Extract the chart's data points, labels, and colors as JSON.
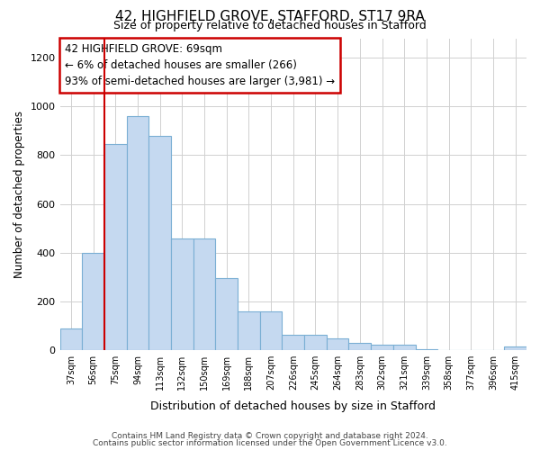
{
  "title1": "42, HIGHFIELD GROVE, STAFFORD, ST17 9RA",
  "title2": "Size of property relative to detached houses in Stafford",
  "xlabel": "Distribution of detached houses by size in Stafford",
  "ylabel": "Number of detached properties",
  "categories": [
    "37sqm",
    "56sqm",
    "75sqm",
    "94sqm",
    "113sqm",
    "132sqm",
    "150sqm",
    "169sqm",
    "188sqm",
    "207sqm",
    "226sqm",
    "245sqm",
    "264sqm",
    "283sqm",
    "302sqm",
    "321sqm",
    "339sqm",
    "358sqm",
    "377sqm",
    "396sqm",
    "415sqm"
  ],
  "values": [
    90,
    400,
    845,
    960,
    880,
    460,
    460,
    295,
    160,
    160,
    65,
    65,
    47,
    30,
    22,
    22,
    5,
    0,
    0,
    0,
    15
  ],
  "bar_color": "#c5d9f0",
  "bar_edge_color": "#7aafd4",
  "highlight_line_color": "#cc0000",
  "annotation_line1": "42 HIGHFIELD GROVE: 69sqm",
  "annotation_line2": "← 6% of detached houses are smaller (266)",
  "annotation_line3": "93% of semi-detached houses are larger (3,981) →",
  "annotation_box_color": "#ffffff",
  "annotation_box_edge_color": "#cc0000",
  "footer1": "Contains HM Land Registry data © Crown copyright and database right 2024.",
  "footer2": "Contains public sector information licensed under the Open Government Licence v3.0.",
  "ylim": [
    0,
    1280
  ],
  "yticks": [
    0,
    200,
    400,
    600,
    800,
    1000,
    1200
  ],
  "background_color": "#ffffff",
  "grid_color": "#d0d0d0"
}
